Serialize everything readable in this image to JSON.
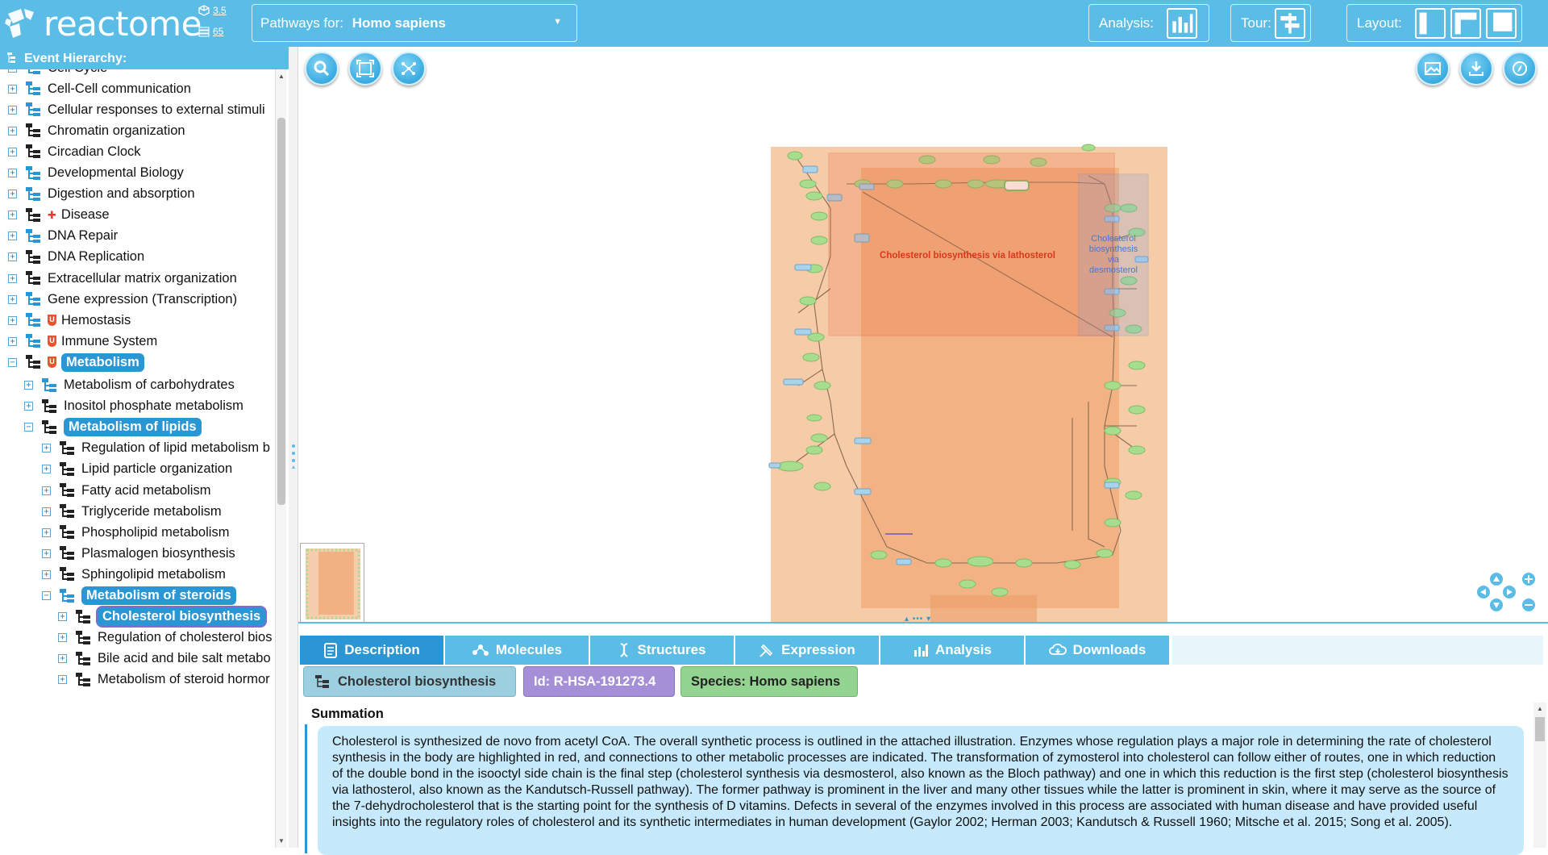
{
  "app": {
    "logo_text": "reactome",
    "version_db": "3.5",
    "version_content": "65"
  },
  "species_selector": {
    "label": "Pathways for:",
    "value": "Homo sapiens"
  },
  "toolbar": {
    "analysis_label": "Analysis:",
    "tour_label": "Tour:",
    "layout_label": "Layout:"
  },
  "event_hierarchy": {
    "title": "Event Hierarchy:",
    "items": [
      {
        "label": "Cell Cycle",
        "level": 0,
        "expander": "+",
        "icon": "pathway-blue"
      },
      {
        "label": "Cell-Cell communication",
        "level": 0,
        "expander": "+",
        "icon": "pathway-blue"
      },
      {
        "label": "Cellular responses to external stimuli",
        "level": 0,
        "expander": "+",
        "icon": "pathway-blue"
      },
      {
        "label": "Chromatin organization",
        "level": 0,
        "expander": "+",
        "icon": "pathway-dark"
      },
      {
        "label": "Circadian Clock",
        "level": 0,
        "expander": "+",
        "icon": "pathway-dark"
      },
      {
        "label": "Developmental Biology",
        "level": 0,
        "expander": "+",
        "icon": "pathway-blue"
      },
      {
        "label": "Digestion and absorption",
        "level": 0,
        "expander": "+",
        "icon": "pathway-blue"
      },
      {
        "label": "Disease",
        "level": 0,
        "expander": "+",
        "icon": "pathway-dark",
        "badge": "disease"
      },
      {
        "label": "DNA Repair",
        "level": 0,
        "expander": "+",
        "icon": "pathway-blue"
      },
      {
        "label": "DNA Replication",
        "level": 0,
        "expander": "+",
        "icon": "pathway-dark"
      },
      {
        "label": "Extracellular matrix organization",
        "level": 0,
        "expander": "+",
        "icon": "pathway-dark"
      },
      {
        "label": "Gene expression (Transcription)",
        "level": 0,
        "expander": "+",
        "icon": "pathway-blue"
      },
      {
        "label": "Hemostasis",
        "level": 0,
        "expander": "+",
        "icon": "pathway-blue",
        "badge": "U"
      },
      {
        "label": "Immune System",
        "level": 0,
        "expander": "+",
        "icon": "pathway-blue",
        "badge": "U"
      },
      {
        "label": "Metabolism",
        "level": 0,
        "expander": "−",
        "icon": "pathway-dark",
        "badge": "U",
        "selected": true
      },
      {
        "label": "Metabolism of carbohydrates",
        "level": 1,
        "expander": "+",
        "icon": "pathway-blue"
      },
      {
        "label": "Inositol phosphate metabolism",
        "level": 1,
        "expander": "+",
        "icon": "pathway-dark"
      },
      {
        "label": "Metabolism of lipids",
        "level": 1,
        "expander": "−",
        "icon": "pathway-dark",
        "selected": true
      },
      {
        "label": "Regulation of lipid metabolism b",
        "level": 2,
        "expander": "+",
        "icon": "pathway-dark"
      },
      {
        "label": "Lipid particle organization",
        "level": 2,
        "expander": "+",
        "icon": "pathway-dark"
      },
      {
        "label": "Fatty acid metabolism",
        "level": 2,
        "expander": "+",
        "icon": "pathway-dark"
      },
      {
        "label": "Triglyceride metabolism",
        "level": 2,
        "expander": "+",
        "icon": "pathway-dark"
      },
      {
        "label": "Phospholipid metabolism",
        "level": 2,
        "expander": "+",
        "icon": "pathway-dark"
      },
      {
        "label": "Plasmalogen biosynthesis",
        "level": 2,
        "expander": "+",
        "icon": "pathway-dark"
      },
      {
        "label": "Sphingolipid metabolism",
        "level": 2,
        "expander": "+",
        "icon": "pathway-dark"
      },
      {
        "label": "Metabolism of steroids",
        "level": 2,
        "expander": "−",
        "icon": "pathway-blue",
        "selected": true
      },
      {
        "label": "Cholesterol biosynthesis",
        "level": 3,
        "expander": "+",
        "icon": "pathway-dark",
        "selected": true,
        "highlight": "purple"
      },
      {
        "label": "Regulation of cholesterol bios",
        "level": 3,
        "expander": "+",
        "icon": "pathway-dark"
      },
      {
        "label": "Bile acid and bile salt metabo",
        "level": 3,
        "expander": "+",
        "icon": "pathway-dark"
      },
      {
        "label": "Metabolism of steroid hormor",
        "level": 3,
        "expander": "+",
        "icon": "pathway-dark"
      }
    ]
  },
  "diagram": {
    "region_red_label": "Cholesterol biosynthesis via lathosterol",
    "region_blue_label": [
      "Cholesterol",
      "biosynthesis",
      "via",
      "desmosterol"
    ],
    "colors": {
      "compartment": "#f3b98a",
      "region_red": "#e3401f",
      "region_blue": "#5b8ad8",
      "node_green": "#a8dd8e",
      "node_blue": "#a9d3ea"
    }
  },
  "details": {
    "tabs": [
      "Description",
      "Molecules",
      "Structures",
      "Expression",
      "Analysis",
      "Downloads"
    ],
    "active_tab": "Description",
    "chips": {
      "name": "Cholesterol biosynthesis",
      "id": "Id: R-HSA-191273.4",
      "species": "Species: Homo sapiens"
    },
    "section_title": "Summation",
    "summation": "Cholesterol is synthesized de novo from acetyl CoA. The overall synthetic process is outlined in the attached illustration. Enzymes whose regulation plays a major role in determining the rate of cholesterol synthesis in the body are highlighted in red, and connections to other metabolic processes are indicated. The transformation of zymosterol into cholesterol can follow either of routes, one in which reduction of the double bond in the isooctyl side chain is the final step (cholesterol synthesis via desmosterol, also known as the Bloch pathway) and one in which this reduction is the first step (cholesterol biosynthesis via lathosterol, also known as the Kandutsch-Russell pathway). The former pathway is prominent in the liver and many other tissues while the latter is prominent in skin, where it may serve as the source of the 7-dehydrocholesterol that is the starting point for the synthesis of D vitamins. Defects in several of the enzymes involved in this process are associated with human disease and have provided useful insights into the regulatory roles of cholesterol and its synthetic intermediates in human development (Gaylor 2002; Herman 2003; Kandutsch & Russell 1960; Mitsche et al. 2015; Song et al. 2005)."
  }
}
